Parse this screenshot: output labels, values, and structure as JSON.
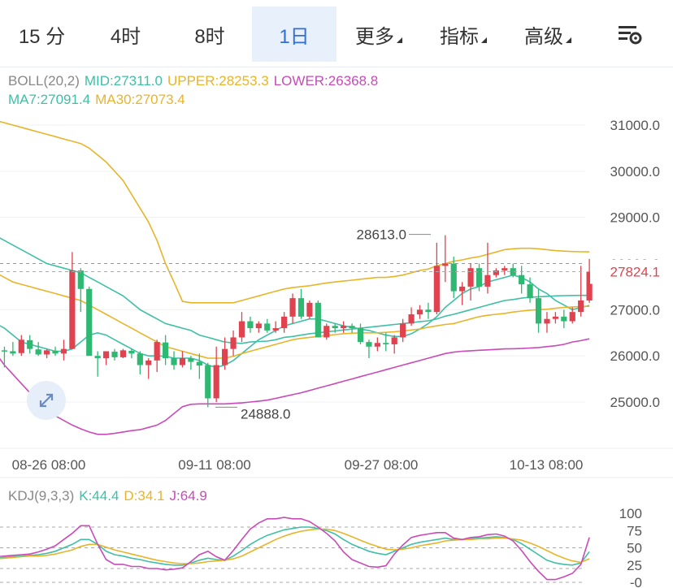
{
  "tabs": [
    {
      "label": "15 分",
      "active": false,
      "dropdown": false
    },
    {
      "label": "4时",
      "active": false,
      "dropdown": false
    },
    {
      "label": "8时",
      "active": false,
      "dropdown": false
    },
    {
      "label": "1日",
      "active": true,
      "dropdown": false
    },
    {
      "label": "更多",
      "active": false,
      "dropdown": true
    },
    {
      "label": "指标",
      "active": false,
      "dropdown": true
    },
    {
      "label": "高级",
      "active": false,
      "dropdown": true
    }
  ],
  "settings_icon": "chart-settings-icon",
  "boll_legend": {
    "name": "BOLL(20,2)",
    "mid": "MID:27311.0",
    "upper": "UPPER:28253.3",
    "lower": "LOWER:26368.8",
    "ma7": "MA7:27091.4",
    "ma30": "MA30:27073.4"
  },
  "kdj_legend": {
    "name": "KDJ(9,3,3)",
    "k": "K:44.4",
    "d": "D:34.1",
    "j": "J:64.9"
  },
  "colors": {
    "up": "#e0434f",
    "down": "#2eb872",
    "mid": "#3fbfa6",
    "upper": "#e8b429",
    "lower": "#c94ab8",
    "ma7": "#3fbfa6",
    "ma30": "#e8b429",
    "k": "#3fbfa6",
    "d": "#e8b429",
    "j": "#c94ab8",
    "accent": "#2f6fd9"
  },
  "chart_data": [
    {
      "type": "candlestick",
      "title": "BOLL(20,2)",
      "ylim": [
        24200,
        31900
      ],
      "y_ticks": [
        "25000.0",
        "26000.0",
        "27000.0",
        "28000.0",
        "29000.0",
        "30000.0",
        "31000.0"
      ],
      "x_tick_labels": [
        "08-26 08:00",
        "09-11 08:00",
        "09-27 08:00",
        "10-13 08:00"
      ],
      "last_price": "27824.1",
      "annotations": [
        {
          "text": "28613.0",
          "price": 28613
        },
        {
          "text": "24888.0",
          "price": 24888
        }
      ],
      "candles": [
        [
          26100,
          26150,
          26000,
          26120
        ],
        [
          26120,
          26200,
          25750,
          26100
        ],
        [
          26100,
          26300,
          26000,
          26050
        ],
        [
          26060,
          26450,
          26000,
          26350
        ],
        [
          26340,
          26450,
          26050,
          26150
        ],
        [
          26140,
          26300,
          26000,
          26030
        ],
        [
          26030,
          26150,
          25950,
          26120
        ],
        [
          26110,
          26200,
          26000,
          26050
        ],
        [
          26050,
          26350,
          25900,
          26150
        ],
        [
          26150,
          28250,
          26150,
          27850
        ],
        [
          27850,
          27900,
          26950,
          27450
        ],
        [
          27450,
          27500,
          26000,
          26000
        ],
        [
          26000,
          26100,
          25550,
          25950
        ],
        [
          25950,
          26100,
          25800,
          26100
        ],
        [
          26090,
          26150,
          25900,
          25970
        ],
        [
          25970,
          26150,
          25950,
          26120
        ],
        [
          26110,
          26150,
          25950,
          26050
        ],
        [
          26050,
          26100,
          25600,
          25800
        ],
        [
          25800,
          25950,
          25500,
          25900
        ],
        [
          25900,
          26350,
          25650,
          26300
        ],
        [
          26290,
          26450,
          25800,
          25950
        ],
        [
          25950,
          26100,
          25700,
          25800
        ],
        [
          25800,
          26100,
          25750,
          25950
        ],
        [
          25950,
          26000,
          25700,
          25870
        ],
        [
          25870,
          26050,
          25500,
          25790
        ],
        [
          25800,
          25850,
          24888,
          25080
        ],
        [
          25080,
          26200,
          25000,
          25800
        ],
        [
          25800,
          26400,
          25700,
          26150
        ],
        [
          26150,
          26550,
          26000,
          26400
        ],
        [
          26400,
          26950,
          26300,
          26750
        ],
        [
          26750,
          26850,
          26500,
          26600
        ],
        [
          26600,
          26750,
          26500,
          26700
        ],
        [
          26700,
          26800,
          26500,
          26550
        ],
        [
          26550,
          26750,
          26500,
          26600
        ],
        [
          26600,
          26950,
          26500,
          26850
        ],
        [
          26850,
          27350,
          26700,
          27250
        ],
        [
          27250,
          27450,
          26800,
          26850
        ],
        [
          26850,
          27200,
          26800,
          27150
        ],
        [
          27150,
          27200,
          26400,
          26400
        ],
        [
          26400,
          26700,
          26350,
          26650
        ],
        [
          26650,
          26700,
          26500,
          26600
        ],
        [
          26600,
          26750,
          26500,
          26650
        ],
        [
          26650,
          26700,
          26500,
          26600
        ],
        [
          26600,
          26700,
          26250,
          26300
        ],
        [
          26300,
          26350,
          25950,
          26200
        ],
        [
          26200,
          26400,
          26100,
          26280
        ],
        [
          26280,
          26500,
          26100,
          26250
        ],
        [
          26250,
          26450,
          26050,
          26400
        ],
        [
          26400,
          26800,
          26300,
          26700
        ],
        [
          26700,
          27050,
          26650,
          26900
        ],
        [
          26900,
          27100,
          26800,
          27000
        ],
        [
          27000,
          27150,
          26800,
          26950
        ],
        [
          26950,
          28450,
          26900,
          27950
        ],
        [
          27950,
          28613,
          27600,
          28000
        ],
        [
          28000,
          28150,
          27250,
          27400
        ],
        [
          27400,
          27600,
          27100,
          27500
        ],
        [
          27500,
          28000,
          27200,
          27900
        ],
        [
          27900,
          28000,
          27400,
          27500
        ],
        [
          27500,
          28450,
          27350,
          27750
        ],
        [
          27750,
          27900,
          27700,
          27850
        ],
        [
          27850,
          27950,
          27750,
          27900
        ],
        [
          27900,
          28000,
          27700,
          27750
        ],
        [
          27750,
          27950,
          27350,
          27550
        ],
        [
          27550,
          27700,
          27150,
          27250
        ],
        [
          27250,
          27450,
          26500,
          26700
        ],
        [
          26700,
          26950,
          26500,
          26800
        ],
        [
          26800,
          26950,
          26700,
          26850
        ],
        [
          26850,
          27000,
          26600,
          26750
        ],
        [
          26750,
          27050,
          26700,
          26950
        ],
        [
          26950,
          27950,
          26850,
          27200
        ],
        [
          27200,
          28100,
          27150,
          27824.1
        ]
      ],
      "series": [
        {
          "name": "UPPER",
          "values": [
            31100,
            31050,
            31000,
            30950,
            30900,
            30850,
            30800,
            30750,
            30700,
            30650,
            30600,
            30500,
            30350,
            30200,
            30000,
            29800,
            29500,
            29200,
            28900,
            28500,
            28000,
            27600,
            27180,
            27150,
            27150,
            27150,
            27150,
            27150,
            27150,
            27200,
            27250,
            27300,
            27350,
            27400,
            27450,
            27480,
            27500,
            27520,
            27550,
            27580,
            27600,
            27620,
            27640,
            27660,
            27680,
            27700,
            27700,
            27720,
            27750,
            27800,
            27850,
            27880,
            27950,
            28000,
            28050,
            28080,
            28120,
            28150,
            28200,
            28250,
            28300,
            28320,
            28330,
            28330,
            28320,
            28300,
            28280,
            28270,
            28260,
            28255,
            28253.3
          ]
        },
        {
          "name": "MID",
          "values": [
            28600,
            28500,
            28400,
            28300,
            28200,
            28100,
            28000,
            27950,
            27900,
            27850,
            27800,
            27700,
            27600,
            27500,
            27400,
            27300,
            27150,
            27000,
            26900,
            26800,
            26700,
            26650,
            26600,
            26550,
            26450,
            26400,
            26350,
            26300,
            26280,
            26270,
            26300,
            26310,
            26320,
            26350,
            26400,
            26420,
            26450,
            26480,
            26500,
            26520,
            26540,
            26560,
            26580,
            26600,
            26620,
            26640,
            26660,
            26680,
            26700,
            26720,
            26740,
            26760,
            26800,
            26860,
            26900,
            26950,
            27000,
            27050,
            27100,
            27150,
            27200,
            27220,
            27250,
            27270,
            27280,
            27290,
            27300,
            27305,
            27308,
            27310,
            27311
          ]
        },
        {
          "name": "LOWER",
          "values": [
            26050,
            25800,
            25600,
            25400,
            25200,
            25000,
            24850,
            24700,
            24600,
            24500,
            24420,
            24350,
            24300,
            24300,
            24320,
            24350,
            24380,
            24400,
            24450,
            24500,
            24600,
            24750,
            24900,
            24950,
            24960,
            24960,
            24960,
            24960,
            24970,
            24980,
            25000,
            25020,
            25040,
            25080,
            25120,
            25160,
            25200,
            25250,
            25300,
            25350,
            25400,
            25450,
            25500,
            25550,
            25600,
            25650,
            25700,
            25750,
            25800,
            25850,
            25900,
            25950,
            26000,
            26050,
            26080,
            26100,
            26110,
            26120,
            26130,
            26140,
            26150,
            26155,
            26160,
            26170,
            26180,
            26200,
            26220,
            26250,
            26300,
            26330,
            26368.8
          ]
        },
        {
          "name": "MA7",
          "values": [
            26700,
            26600,
            26450,
            26300,
            26250,
            26200,
            26150,
            26100,
            26100,
            26150,
            26300,
            26450,
            26500,
            26450,
            26350,
            26250,
            26150,
            26050,
            26000,
            26000,
            25990,
            25950,
            25950,
            25950,
            25900,
            25800,
            25750,
            25800,
            25900,
            26050,
            26200,
            26350,
            26450,
            26550,
            26650,
            26700,
            26750,
            26800,
            26800,
            26750,
            26700,
            26650,
            26620,
            26580,
            26550,
            26500,
            26450,
            26420,
            26420,
            26480,
            26580,
            26700,
            26850,
            27050,
            27200,
            27350,
            27450,
            27500,
            27600,
            27650,
            27700,
            27750,
            27700,
            27600,
            27450,
            27350,
            27200,
            27100,
            27000,
            27050,
            27091.4
          ]
        },
        {
          "name": "MA30",
          "values": [
            27800,
            27700,
            27600,
            27550,
            27500,
            27450,
            27400,
            27350,
            27300,
            27250,
            27200,
            27100,
            27000,
            26900,
            26800,
            26700,
            26600,
            26500,
            26400,
            26300,
            26200,
            26150,
            26100,
            26050,
            26000,
            25950,
            25950,
            25950,
            25990,
            26050,
            26100,
            26150,
            26200,
            26250,
            26300,
            26350,
            26380,
            26400,
            26420,
            26440,
            26460,
            26480,
            26490,
            26500,
            26500,
            26500,
            26510,
            26520,
            26540,
            26560,
            26580,
            26620,
            26650,
            26680,
            26700,
            26750,
            26800,
            26850,
            26880,
            26900,
            26920,
            26950,
            26970,
            26990,
            27000,
            27010,
            27030,
            27050,
            27060,
            27070,
            27073.4
          ]
        }
      ]
    },
    {
      "type": "line",
      "title": "KDJ(9,3,3)",
      "ylim": [
        -3,
        110
      ],
      "y_ticks": [
        "100",
        "75",
        "50",
        "25",
        "-0"
      ],
      "series": [
        {
          "name": "K",
          "values": [
            35,
            36,
            37,
            38,
            39,
            40,
            42,
            45,
            50,
            55,
            62,
            62,
            55,
            45,
            40,
            38,
            35,
            33,
            30,
            28,
            26,
            25,
            25,
            28,
            32,
            35,
            33,
            32,
            38,
            46,
            55,
            62,
            68,
            72,
            76,
            78,
            80,
            80,
            78,
            75,
            70,
            62,
            55,
            50,
            45,
            42,
            40,
            45,
            50,
            55,
            58,
            60,
            62,
            64,
            62,
            62,
            63,
            64,
            65,
            66,
            65,
            62,
            56,
            48,
            40,
            32,
            28,
            26,
            25,
            28,
            44.4
          ]
        },
        {
          "name": "D",
          "values": [
            34,
            35,
            36,
            37,
            38,
            38,
            39,
            41,
            44,
            47,
            52,
            55,
            55,
            51,
            47,
            44,
            41,
            38,
            35,
            32,
            30,
            28,
            27,
            27,
            28,
            30,
            31,
            32,
            34,
            38,
            44,
            50,
            56,
            62,
            67,
            71,
            74,
            76,
            77,
            77,
            75,
            71,
            66,
            61,
            56,
            52,
            48,
            47,
            48,
            50,
            53,
            55,
            57,
            60,
            61,
            62,
            62,
            63,
            63,
            64,
            64,
            63,
            61,
            57,
            52,
            46,
            40,
            35,
            31,
            29,
            34.1
          ]
        },
        {
          "name": "J",
          "values": [
            37,
            38,
            39,
            40,
            41,
            44,
            48,
            53,
            62,
            71,
            82,
            82,
            55,
            33,
            26,
            26,
            23,
            23,
            20,
            20,
            18,
            19,
            21,
            30,
            40,
            45,
            37,
            32,
            46,
            62,
            77,
            86,
            92,
            92,
            94,
            92,
            92,
            88,
            80,
            71,
            60,
            44,
            33,
            28,
            23,
            22,
            24,
            41,
            54,
            65,
            68,
            70,
            72,
            72,
            64,
            62,
            65,
            66,
            69,
            70,
            67,
            60,
            46,
            30,
            16,
            4,
            4,
            8,
            13,
            26,
            64.9
          ]
        }
      ]
    }
  ]
}
